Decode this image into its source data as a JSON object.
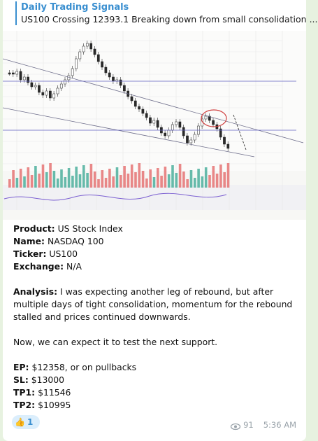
{
  "reply": {
    "title": "Daily Trading Signals",
    "text": "US100 Crossing 12393.1 Breaking down from small consolidation ..."
  },
  "product": {
    "label": "Product:",
    "value": "US Stock Index"
  },
  "name": {
    "label": "Name:",
    "value": "NASDAQ 100"
  },
  "ticker": {
    "label": "Ticker:",
    "value": "US100"
  },
  "exchange": {
    "label": "Exchange:",
    "value": "N/A"
  },
  "analysis": {
    "label": "Analysis:",
    "text": "I was expecting another leg of rebound, but after multiple days of tight consolidation, momentum for the rebound stalled and prices continued downwards."
  },
  "note": "Now, we can expect it to test the next support.",
  "ep": {
    "label": "EP:",
    "value": "$12358, or on pullbacks"
  },
  "sl": {
    "label": "SL:",
    "value": "$13000"
  },
  "tp1": {
    "label": "TP1:",
    "value": "$11546"
  },
  "tp2": {
    "label": "TP2:",
    "value": "$10995"
  },
  "reaction": {
    "emoji": "👍",
    "count": "1"
  },
  "meta": {
    "views": "91",
    "time": "5:36 AM"
  },
  "colors": {
    "accent": "#3a8fd0",
    "up": "#4caf9c",
    "down": "#e57373"
  },
  "icons": {
    "views": "eye-icon",
    "reaction": "thumbs-up-icon"
  }
}
